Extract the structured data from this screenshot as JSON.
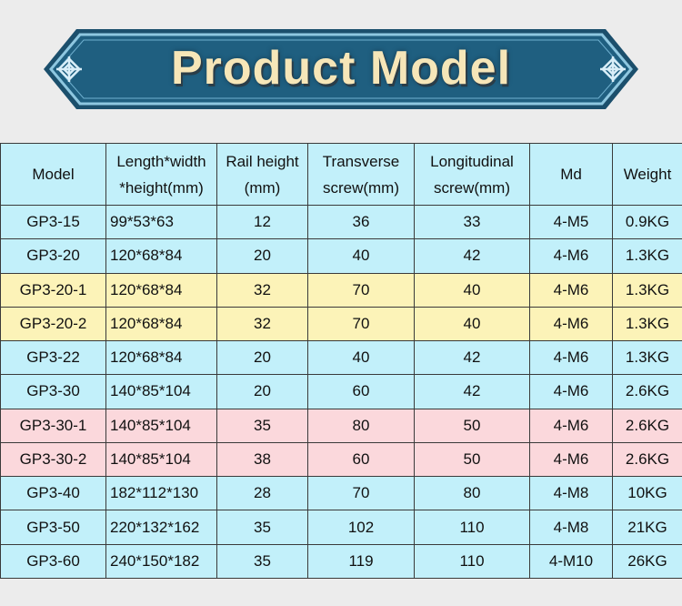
{
  "banner": {
    "title": "Product Model",
    "colors": {
      "fill": "#1f5f80",
      "border": "#8ec7e0",
      "text": "#f6e6b8"
    },
    "ornament_icon": "endless-knot-icon"
  },
  "table": {
    "headers": [
      "Model",
      "Length*width *height(mm)",
      "Rail height (mm)",
      "Transverse screw(mm)",
      "Longitudinal screw(mm)",
      "Md",
      "Weight"
    ],
    "row_colors": {
      "blue": "#c2f0fa",
      "yellow": "#fcf3b8",
      "pink": "#fbd8dc"
    },
    "rows": [
      {
        "color": "blue",
        "cells": [
          "GP3-15",
          "99*53*63",
          "12",
          "36",
          "33",
          "4-M5",
          "0.9KG"
        ]
      },
      {
        "color": "blue",
        "cells": [
          "GP3-20",
          "120*68*84",
          "20",
          "40",
          "42",
          "4-M6",
          "1.3KG"
        ]
      },
      {
        "color": "yellow",
        "cells": [
          "GP3-20-1",
          "120*68*84",
          "32",
          "70",
          "40",
          "4-M6",
          "1.3KG"
        ]
      },
      {
        "color": "yellow",
        "cells": [
          "GP3-20-2",
          "120*68*84",
          "32",
          "70",
          "40",
          "4-M6",
          "1.3KG"
        ]
      },
      {
        "color": "blue",
        "cells": [
          "GP3-22",
          "120*68*84",
          "20",
          "40",
          "42",
          "4-M6",
          "1.3KG"
        ]
      },
      {
        "color": "blue",
        "cells": [
          "GP3-30",
          "140*85*104",
          "20",
          "60",
          "42",
          "4-M6",
          "2.6KG"
        ]
      },
      {
        "color": "pink",
        "cells": [
          "GP3-30-1",
          "140*85*104",
          "35",
          "80",
          "50",
          "4-M6",
          "2.6KG"
        ]
      },
      {
        "color": "pink",
        "cells": [
          "GP3-30-2",
          "140*85*104",
          "38",
          "60",
          "50",
          "4-M6",
          "2.6KG"
        ]
      },
      {
        "color": "blue",
        "cells": [
          "GP3-40",
          "182*112*130",
          "28",
          "70",
          "80",
          "4-M8",
          "10KG"
        ]
      },
      {
        "color": "blue",
        "cells": [
          "GP3-50",
          "220*132*162",
          "35",
          "102",
          "110",
          "4-M8",
          "21KG"
        ]
      },
      {
        "color": "blue",
        "cells": [
          "GP3-60",
          "240*150*182",
          "35",
          "119",
          "110",
          "4-M10",
          "26KG"
        ]
      }
    ]
  }
}
